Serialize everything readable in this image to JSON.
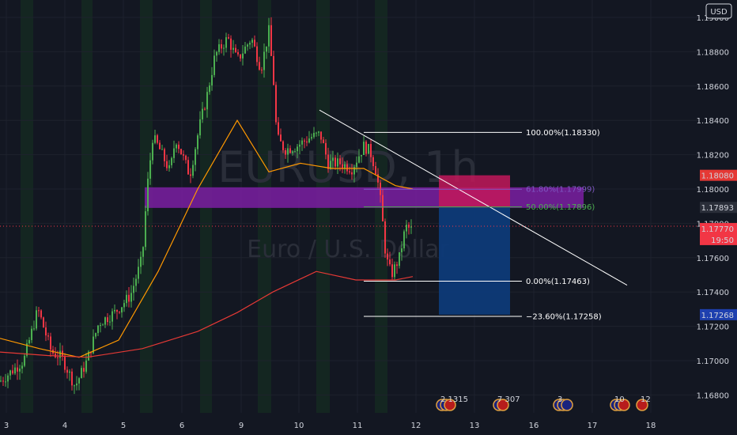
{
  "chart_data": {
    "type": "candlestick",
    "title": "EURUSD, 1h",
    "subtitle": "Euro / U.S. Dollar",
    "currency": "USD",
    "y_ticks": [
      "1.19000",
      "1.18800",
      "1.18600",
      "1.18400",
      "1.18200",
      "1.18000",
      "1.17800",
      "1.17600",
      "1.17400",
      "1.17200",
      "1.17000",
      "1.16800"
    ],
    "x_ticks": [
      "3",
      "4",
      "5",
      "6",
      "9",
      "10",
      "11",
      "12",
      "13",
      "16",
      "17",
      "18"
    ],
    "ylim": [
      1.1672,
      1.1915
    ],
    "price_badges": [
      {
        "value": "1.18080",
        "color": "#e53935"
      },
      {
        "value": "1.17893",
        "color": "#2a2e39"
      },
      {
        "value": "1.17770",
        "color": "#f23645",
        "sub": "19:50"
      },
      {
        "value": "1.17268",
        "color": "#1e40af"
      }
    ],
    "fib_levels": [
      {
        "label": "100.00%(1.18330)",
        "price": 1.1833,
        "color": "#ffffff"
      },
      {
        "label": "61.80%(1.17999)",
        "price": 1.17999,
        "color": "#7e57c2"
      },
      {
        "label": "50.00%(1.17896)",
        "price": 1.17896,
        "color": "#4caf50"
      },
      {
        "label": "0.00%(1.17463)",
        "price": 1.17463,
        "color": "#ffffff"
      },
      {
        "label": "−23.60%(1.17258)",
        "price": 1.17258,
        "color": "#ffffff"
      }
    ],
    "position": {
      "entry": 1.17893,
      "stop": 1.1808,
      "target": 1.17268
    },
    "events": [
      {
        "label": "2 1315",
        "flags": [
          "EU",
          "EU",
          "US"
        ]
      },
      {
        "label": "7 307",
        "flags": [
          "EU",
          "US"
        ]
      },
      {
        "label": "3",
        "flags": [
          "EU",
          "EU",
          "EU"
        ]
      },
      {
        "label": "10",
        "flags": [
          "EU",
          "EU",
          "US"
        ]
      },
      {
        "label": "12",
        "flags": [
          "US"
        ]
      }
    ],
    "colors": {
      "up": "#4caf50",
      "down": "#f23645",
      "ma_fast": "#ff9800",
      "ma_slow": "#e53935",
      "session": "#1b5e20"
    }
  }
}
